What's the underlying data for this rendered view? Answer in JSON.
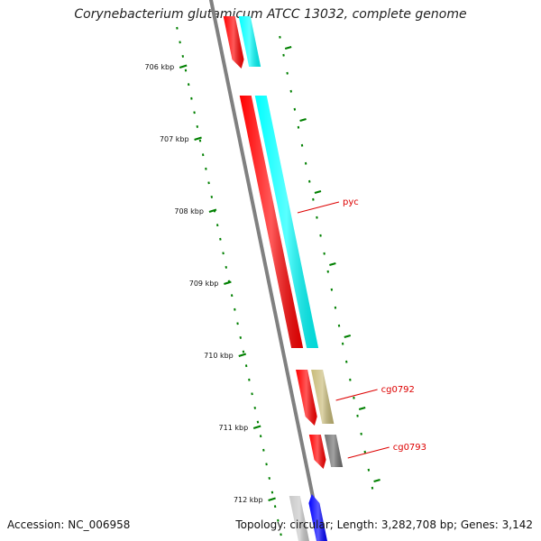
{
  "title": "Corynebacterium glutamicum ATCC 13032, complete genome",
  "footer": {
    "accession": "Accession: NC_006958",
    "summary": "Topology: circular; Length: 3,282,708 bp; Genes: 3,142"
  },
  "colors": {
    "backbone": "#808080",
    "ruler_ticks": "#008000",
    "label_line": "#dd0000",
    "label_text": "#dd0000"
  },
  "ruler": {
    "labels": [
      "706 kbp",
      "707 kbp",
      "708 kbp",
      "709 kbp",
      "710 kbp",
      "711 kbp",
      "712 kbp"
    ]
  },
  "features": [
    {
      "track": "forward",
      "color": "#ff0000",
      "start_kbp": 705.3,
      "end_kbp": 706.0,
      "arrow": "end"
    },
    {
      "track": "forward",
      "color": "#00ffff",
      "start_kbp": 705.3,
      "end_kbp": 706.0,
      "arrow": "none",
      "outer": true
    },
    {
      "track": "forward",
      "color": "#ff0000",
      "start_kbp": 706.4,
      "end_kbp": 709.9,
      "arrow": "none"
    },
    {
      "track": "forward",
      "color": "#00ffff",
      "start_kbp": 706.4,
      "end_kbp": 709.9,
      "arrow": "none",
      "outer": true
    },
    {
      "track": "forward",
      "color": "#ff0000",
      "start_kbp": 710.2,
      "end_kbp": 710.95,
      "arrow": "end"
    },
    {
      "track": "forward",
      "color": "#c8bb78",
      "start_kbp": 710.2,
      "end_kbp": 710.95,
      "arrow": "none",
      "outer": true
    },
    {
      "track": "forward",
      "color": "#ff0000",
      "start_kbp": 711.1,
      "end_kbp": 711.55,
      "arrow": "end"
    },
    {
      "track": "forward",
      "color": "#707070",
      "start_kbp": 711.1,
      "end_kbp": 711.55,
      "arrow": "none",
      "outer": true
    },
    {
      "track": "forward",
      "color": "#0000ff",
      "start_kbp": 711.95,
      "end_kbp": 712.6,
      "arrow": "start"
    },
    {
      "track": "forward",
      "color": "#c8c8c8",
      "start_kbp": 711.95,
      "end_kbp": 712.6,
      "arrow": "none",
      "inner": true
    }
  ],
  "gene_labels": [
    {
      "text": "pyc",
      "kbp": 708.0
    },
    {
      "text": "cg0792",
      "kbp": 710.6
    },
    {
      "text": "cg0793",
      "kbp": 711.4
    }
  ]
}
